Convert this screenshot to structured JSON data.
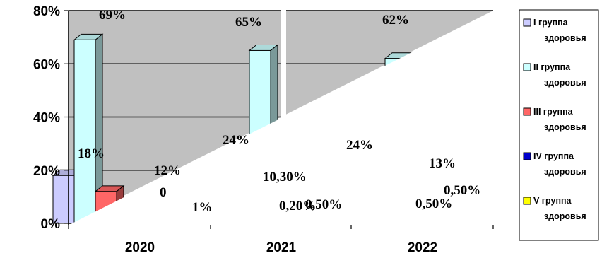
{
  "chart_data": {
    "type": "bar",
    "categories": [
      "2020",
      "2021",
      "2022"
    ],
    "y_ticks": [
      "0%",
      "20%",
      "40%",
      "60%",
      "80%"
    ],
    "ylim": [
      0,
      80
    ],
    "grid": true,
    "legend_position": "right",
    "series": [
      {
        "name": "I группа здоровья",
        "color": "#ccccff",
        "values": [
          18,
          24,
          24
        ],
        "labels": [
          "18%",
          "24%",
          "24%"
        ]
      },
      {
        "name": "II группа здоровья",
        "color": "#ccffff",
        "values": [
          69,
          65,
          62
        ],
        "labels": [
          "69%",
          "65%",
          "62%"
        ]
      },
      {
        "name": "III группа здоровья",
        "color": "#ff6666",
        "values": [
          12,
          10.3,
          13
        ],
        "labels": [
          "12%",
          "10,30%",
          "13%"
        ]
      },
      {
        "name": "IV группа здоровья",
        "color": "#0000cc",
        "values": [
          0,
          0.2,
          0.5
        ],
        "labels": [
          "0",
          "0,20%",
          "0,50%"
        ]
      },
      {
        "name": "V группа здоровья",
        "color": "#ffff00",
        "values": [
          1,
          0.5,
          0.5
        ],
        "labels": [
          "1%",
          "0,50%",
          "0,50%"
        ]
      }
    ]
  }
}
